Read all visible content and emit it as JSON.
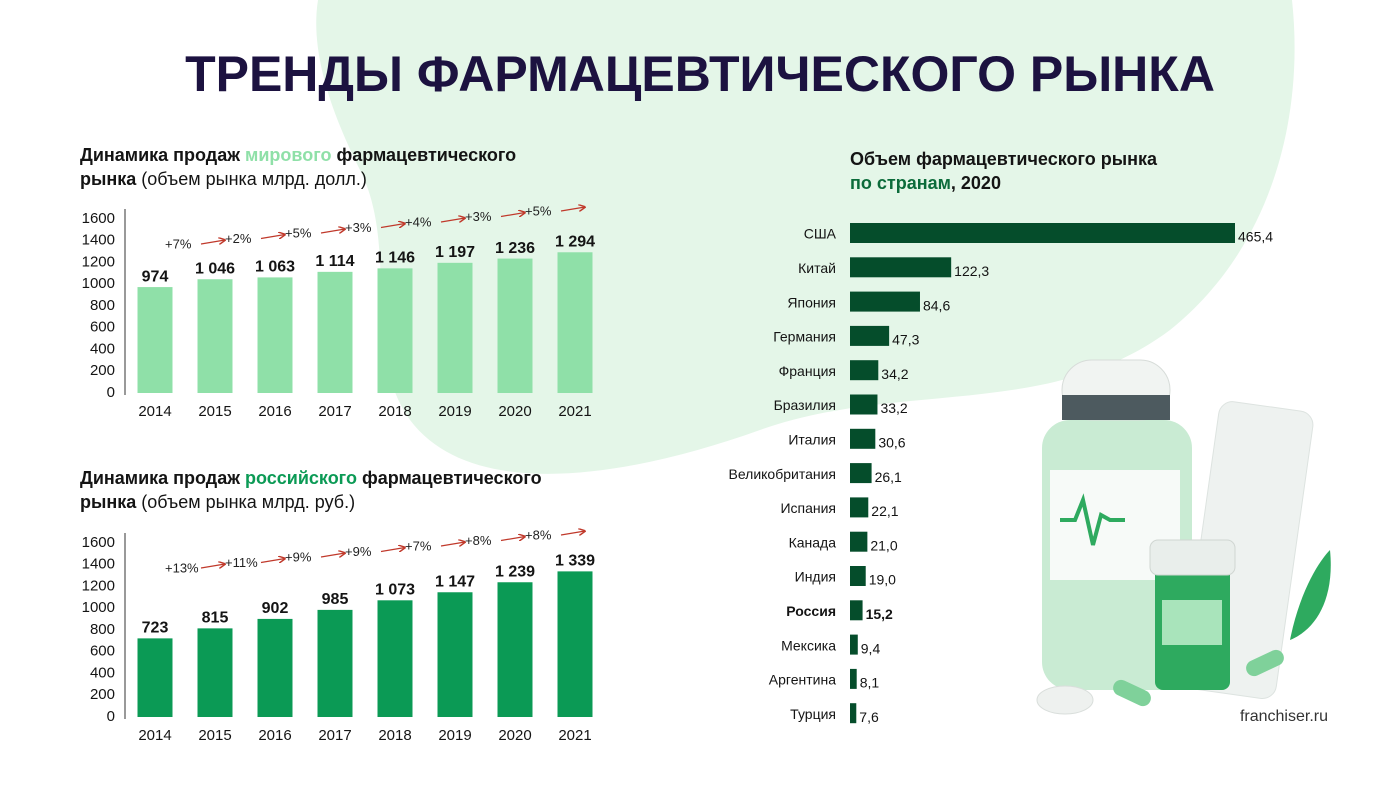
{
  "title": "ТРЕНДЫ ФАРМАЦЕВТИЧЕСКОГО РЫНКА",
  "source": "franchiser.ru",
  "chart_data": [
    {
      "type": "bar",
      "title": [
        "Динамика продаж ",
        "мирового",
        " фармацевтического рынка"
      ],
      "title_colors": [
        "#141414",
        "#8fe0a8",
        "#141414"
      ],
      "subtitle": "(объем рынка млрд. долл.)",
      "categories": [
        "2014",
        "2015",
        "2016",
        "2017",
        "2018",
        "2019",
        "2020",
        "2021"
      ],
      "values": [
        974,
        1046,
        1063,
        1114,
        1146,
        1197,
        1236,
        1294
      ],
      "value_labels": [
        "974",
        "1 046",
        "1 063",
        "1 114",
        "1 146",
        "1 197",
        "1 236",
        "1 294"
      ],
      "annotations": [
        "+7%",
        "+2%",
        "+5%",
        "+3%",
        "+4%",
        "+3%",
        "+5%"
      ],
      "color": "#8fe0a8",
      "ylim": [
        0,
        1600
      ],
      "yticks": [
        0,
        200,
        400,
        600,
        800,
        1000,
        1200,
        1400,
        1600
      ],
      "grid": false
    },
    {
      "type": "bar",
      "title": [
        "Динамика продаж ",
        "российского",
        " фармацевтического рынка"
      ],
      "title_colors": [
        "#141414",
        "#0b9a55",
        "#141414"
      ],
      "subtitle": "(объем рынка млрд. руб.)",
      "categories": [
        "2014",
        "2015",
        "2016",
        "2017",
        "2018",
        "2019",
        "2020",
        "2021"
      ],
      "values": [
        723,
        815,
        902,
        985,
        1073,
        1147,
        1239,
        1339
      ],
      "value_labels": [
        "723",
        "815",
        "902",
        "985",
        "1 073",
        "1 147",
        "1 239",
        "1 339"
      ],
      "annotations": [
        "+13%",
        "+11%",
        "+9%",
        "+9%",
        "+7%",
        "+8%",
        "+8%"
      ],
      "color": "#0b9a55",
      "ylim": [
        0,
        1600
      ],
      "yticks": [
        0,
        200,
        400,
        600,
        800,
        1000,
        1200,
        1400,
        1600
      ],
      "grid": false
    },
    {
      "type": "barh",
      "title": [
        "Объем фармацевтического рынка",
        "по странам",
        ", 2020"
      ],
      "title_colors": [
        "#141414",
        "#0b6b3a",
        "#141414"
      ],
      "categories": [
        "США",
        "Китай",
        "Япония",
        "Германия",
        "Франция",
        "Бразилия",
        "Италия",
        "Великобритания",
        "Испания",
        "Канада",
        "Индия",
        "Россия",
        "Мексика",
        "Аргентина",
        "Турция"
      ],
      "values": [
        465.4,
        122.3,
        84.6,
        47.3,
        34.2,
        33.2,
        30.6,
        26.1,
        22.1,
        21.0,
        19.0,
        15.2,
        9.4,
        8.1,
        7.6
      ],
      "value_labels": [
        "465,4",
        "122,3",
        "84,6",
        "47,3",
        "34,2",
        "33,2",
        "30,6",
        "26,1",
        "22,1",
        "21,0",
        "19,0",
        "15,2",
        "9,4",
        "8,1",
        "7,6"
      ],
      "color": "#054d2b",
      "highlight": "Россия"
    }
  ]
}
